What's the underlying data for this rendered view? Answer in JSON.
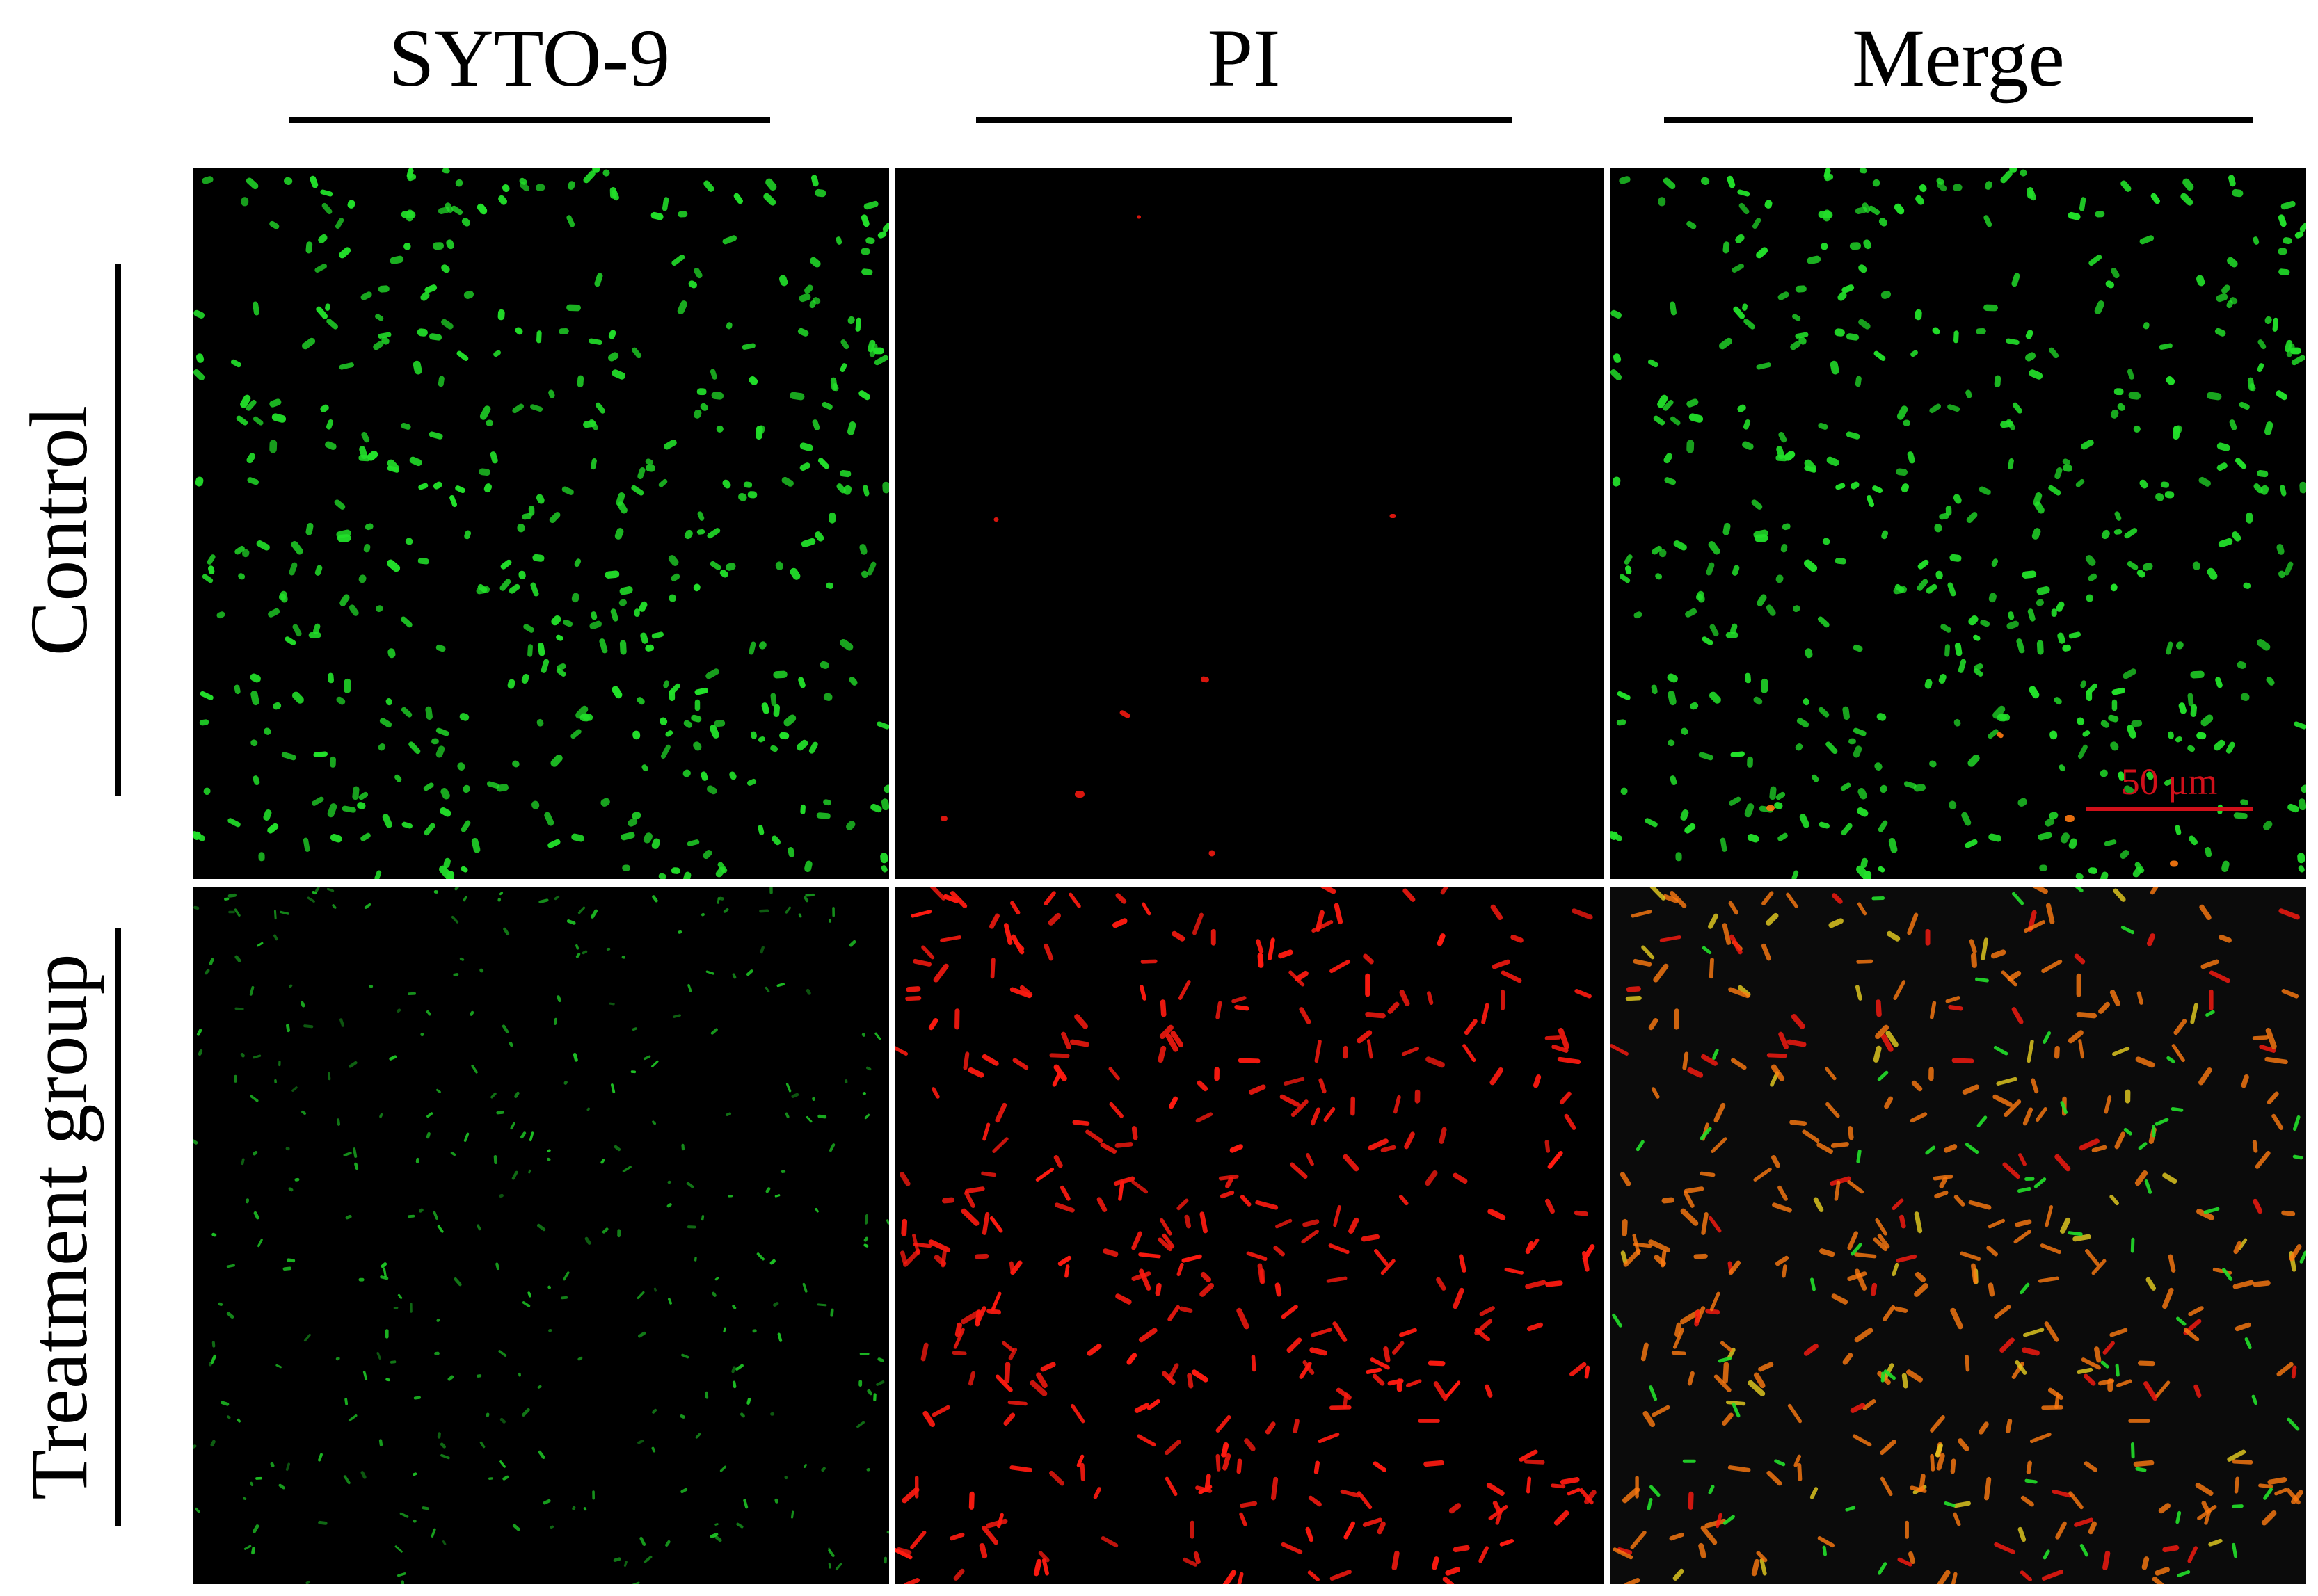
{
  "columns": [
    {
      "id": "syto9",
      "label": "SYTO-9"
    },
    {
      "id": "pi",
      "label": "PI"
    },
    {
      "id": "merge",
      "label": "Merge"
    }
  ],
  "rows": [
    {
      "id": "control",
      "label": "Control"
    },
    {
      "id": "treatment",
      "label": "Treatment group"
    }
  ],
  "scale_bar": {
    "label": "50 μm"
  },
  "colors": {
    "background": "#000000",
    "syto9_green": "#22e02a",
    "pi_red": "#ff1a10",
    "merge_orange": "#ff7a10",
    "merge_yellow": "#e8d020",
    "scale_red": "#d0101a"
  }
}
